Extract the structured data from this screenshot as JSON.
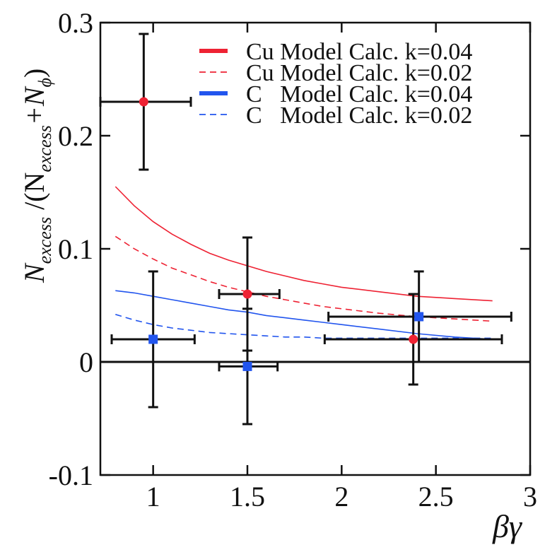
{
  "chart_data": {
    "type": "scatter",
    "xlabel": "βγ",
    "ylabel": {
      "main": "N",
      "sub_excess": "excess",
      "divider": " /(N",
      "sub_excess2": "excess",
      "plus": "+N",
      "sub_phi": "ϕ",
      "close": ")"
    },
    "xlim": [
      0.72,
      3.0
    ],
    "ylim": [
      -0.1,
      0.3
    ],
    "xticks": [
      {
        "v": 1,
        "label": "1"
      },
      {
        "v": 1.5,
        "label": "1.5"
      },
      {
        "v": 2,
        "label": "2"
      },
      {
        "v": 2.5,
        "label": "2.5"
      },
      {
        "v": 3,
        "label": "3"
      }
    ],
    "yticks": [
      {
        "v": -0.1,
        "label": "-0.1"
      },
      {
        "v": 0,
        "label": "0"
      },
      {
        "v": 0.1,
        "label": "0.1"
      },
      {
        "v": 0.2,
        "label": "0.2"
      },
      {
        "v": 0.3,
        "label": "0.3"
      }
    ],
    "zero_line": 0,
    "colors": {
      "cu": "#ee2233",
      "c": "#2255ee",
      "err": "#111111"
    },
    "legend": [
      {
        "label": "Cu Model Calc. k=0.04",
        "color": "#ee2233",
        "style": "solid"
      },
      {
        "label": "Cu Model Calc. k=0.02",
        "color": "#ee2233",
        "style": "dashed"
      },
      {
        "label": "C   Model Calc. k=0.04",
        "color": "#2255ee",
        "style": "solid"
      },
      {
        "label": "C   Model Calc. k=0.02",
        "color": "#2255ee",
        "style": "dashed"
      }
    ],
    "curves": [
      {
        "name": "Cu k=0.04",
        "color": "#ee2233",
        "style": "solid",
        "x": [
          0.8,
          0.9,
          1.0,
          1.1,
          1.2,
          1.3,
          1.4,
          1.5,
          1.6,
          1.7,
          1.8,
          1.9,
          2.0,
          2.2,
          2.4,
          2.6,
          2.8
        ],
        "y": [
          0.155,
          0.138,
          0.124,
          0.113,
          0.104,
          0.096,
          0.09,
          0.085,
          0.08,
          0.076,
          0.072,
          0.069,
          0.066,
          0.062,
          0.058,
          0.056,
          0.054
        ]
      },
      {
        "name": "Cu k=0.02",
        "color": "#ee2233",
        "style": "dashed",
        "x": [
          0.8,
          0.9,
          1.0,
          1.1,
          1.2,
          1.3,
          1.4,
          1.5,
          1.6,
          1.7,
          1.8,
          1.9,
          2.0,
          2.2,
          2.4,
          2.6,
          2.8
        ],
        "y": [
          0.111,
          0.1,
          0.091,
          0.083,
          0.077,
          0.071,
          0.066,
          0.062,
          0.058,
          0.055,
          0.052,
          0.049,
          0.047,
          0.043,
          0.04,
          0.038,
          0.036
        ]
      },
      {
        "name": "C k=0.04",
        "color": "#2255ee",
        "style": "solid",
        "x": [
          0.8,
          0.9,
          1.0,
          1.1,
          1.2,
          1.3,
          1.4,
          1.5,
          1.6,
          1.7,
          1.8,
          1.9,
          2.0,
          2.2,
          2.4,
          2.6,
          2.8
        ],
        "y": [
          0.063,
          0.061,
          0.058,
          0.055,
          0.052,
          0.049,
          0.046,
          0.044,
          0.041,
          0.039,
          0.037,
          0.035,
          0.033,
          0.029,
          0.025,
          0.022,
          0.02
        ]
      },
      {
        "name": "C k=0.02",
        "color": "#2255ee",
        "style": "dashed",
        "x": [
          0.8,
          0.9,
          1.0,
          1.1,
          1.2,
          1.3,
          1.4,
          1.5,
          1.6,
          1.7,
          1.8,
          1.9,
          2.0,
          2.2,
          2.4,
          2.6,
          2.8
        ],
        "y": [
          0.042,
          0.037,
          0.033,
          0.03,
          0.028,
          0.026,
          0.025,
          0.024,
          0.023,
          0.022,
          0.022,
          0.021,
          0.021,
          0.021,
          0.021,
          0.021,
          0.021
        ]
      }
    ],
    "points": [
      {
        "series": "Cu",
        "x": 0.95,
        "y": 0.23,
        "xlo": 0.72,
        "xhi": 1.2,
        "ylo": 0.17,
        "yhi": 0.29
      },
      {
        "series": "Cu",
        "x": 1.5,
        "y": 0.06,
        "xlo": 1.35,
        "xhi": 1.67,
        "ylo": 0.01,
        "yhi": 0.11
      },
      {
        "series": "Cu",
        "x": 2.38,
        "y": 0.02,
        "xlo": 1.91,
        "xhi": 2.85,
        "ylo": -0.02,
        "yhi": 0.06
      },
      {
        "series": "C",
        "x": 1.0,
        "y": 0.02,
        "xlo": 0.78,
        "xhi": 1.22,
        "ylo": -0.04,
        "yhi": 0.08
      },
      {
        "series": "C",
        "x": 1.5,
        "y": -0.004,
        "xlo": 1.35,
        "xhi": 1.66,
        "ylo": -0.055,
        "yhi": 0.047
      },
      {
        "series": "C",
        "x": 2.41,
        "y": 0.04,
        "xlo": 1.93,
        "xhi": 2.9,
        "ylo": 0.0,
        "yhi": 0.08
      }
    ]
  }
}
